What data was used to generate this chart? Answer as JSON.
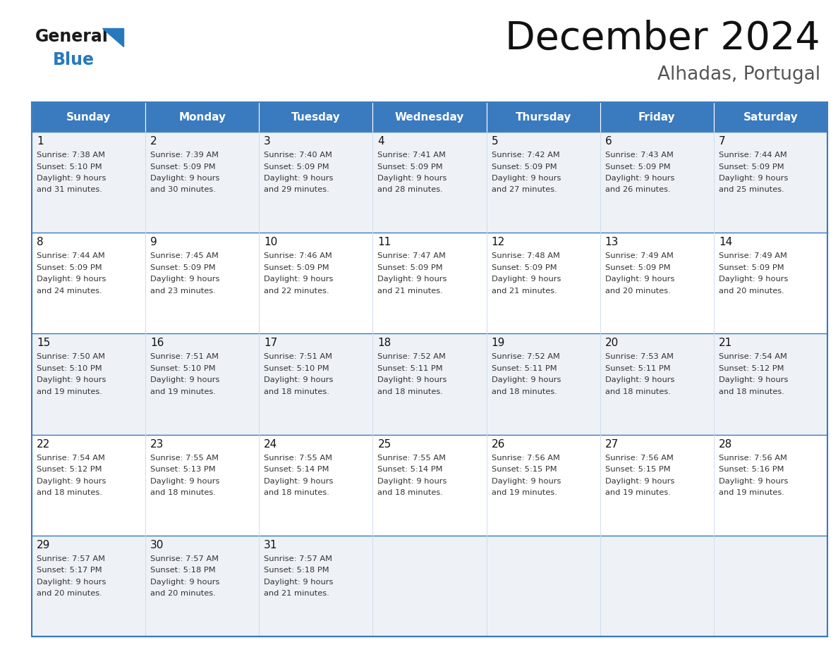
{
  "title": "December 2024",
  "subtitle": "Alhadas, Portugal",
  "days_of_week": [
    "Sunday",
    "Monday",
    "Tuesday",
    "Wednesday",
    "Thursday",
    "Friday",
    "Saturday"
  ],
  "header_bg": "#3a7abf",
  "header_text": "#ffffff",
  "cell_bg_light": "#eef2f7",
  "cell_bg_white": "#ffffff",
  "border_color": "#3a7abf",
  "row_border_color": "#6699cc",
  "day_num_color": "#111111",
  "text_color": "#333333",
  "calendar_data": [
    [
      {
        "day": "1",
        "sunrise": "7:38 AM",
        "sunset": "5:10 PM",
        "daylight_line1": "9 hours",
        "daylight_line2": "and 31 minutes."
      },
      {
        "day": "2",
        "sunrise": "7:39 AM",
        "sunset": "5:09 PM",
        "daylight_line1": "9 hours",
        "daylight_line2": "and 30 minutes."
      },
      {
        "day": "3",
        "sunrise": "7:40 AM",
        "sunset": "5:09 PM",
        "daylight_line1": "9 hours",
        "daylight_line2": "and 29 minutes."
      },
      {
        "day": "4",
        "sunrise": "7:41 AM",
        "sunset": "5:09 PM",
        "daylight_line1": "9 hours",
        "daylight_line2": "and 28 minutes."
      },
      {
        "day": "5",
        "sunrise": "7:42 AM",
        "sunset": "5:09 PM",
        "daylight_line1": "9 hours",
        "daylight_line2": "and 27 minutes."
      },
      {
        "day": "6",
        "sunrise": "7:43 AM",
        "sunset": "5:09 PM",
        "daylight_line1": "9 hours",
        "daylight_line2": "and 26 minutes."
      },
      {
        "day": "7",
        "sunrise": "7:44 AM",
        "sunset": "5:09 PM",
        "daylight_line1": "9 hours",
        "daylight_line2": "and 25 minutes."
      }
    ],
    [
      {
        "day": "8",
        "sunrise": "7:44 AM",
        "sunset": "5:09 PM",
        "daylight_line1": "9 hours",
        "daylight_line2": "and 24 minutes."
      },
      {
        "day": "9",
        "sunrise": "7:45 AM",
        "sunset": "5:09 PM",
        "daylight_line1": "9 hours",
        "daylight_line2": "and 23 minutes."
      },
      {
        "day": "10",
        "sunrise": "7:46 AM",
        "sunset": "5:09 PM",
        "daylight_line1": "9 hours",
        "daylight_line2": "and 22 minutes."
      },
      {
        "day": "11",
        "sunrise": "7:47 AM",
        "sunset": "5:09 PM",
        "daylight_line1": "9 hours",
        "daylight_line2": "and 21 minutes."
      },
      {
        "day": "12",
        "sunrise": "7:48 AM",
        "sunset": "5:09 PM",
        "daylight_line1": "9 hours",
        "daylight_line2": "and 21 minutes."
      },
      {
        "day": "13",
        "sunrise": "7:49 AM",
        "sunset": "5:09 PM",
        "daylight_line1": "9 hours",
        "daylight_line2": "and 20 minutes."
      },
      {
        "day": "14",
        "sunrise": "7:49 AM",
        "sunset": "5:09 PM",
        "daylight_line1": "9 hours",
        "daylight_line2": "and 20 minutes."
      }
    ],
    [
      {
        "day": "15",
        "sunrise": "7:50 AM",
        "sunset": "5:10 PM",
        "daylight_line1": "9 hours",
        "daylight_line2": "and 19 minutes."
      },
      {
        "day": "16",
        "sunrise": "7:51 AM",
        "sunset": "5:10 PM",
        "daylight_line1": "9 hours",
        "daylight_line2": "and 19 minutes."
      },
      {
        "day": "17",
        "sunrise": "7:51 AM",
        "sunset": "5:10 PM",
        "daylight_line1": "9 hours",
        "daylight_line2": "and 18 minutes."
      },
      {
        "day": "18",
        "sunrise": "7:52 AM",
        "sunset": "5:11 PM",
        "daylight_line1": "9 hours",
        "daylight_line2": "and 18 minutes."
      },
      {
        "day": "19",
        "sunrise": "7:52 AM",
        "sunset": "5:11 PM",
        "daylight_line1": "9 hours",
        "daylight_line2": "and 18 minutes."
      },
      {
        "day": "20",
        "sunrise": "7:53 AM",
        "sunset": "5:11 PM",
        "daylight_line1": "9 hours",
        "daylight_line2": "and 18 minutes."
      },
      {
        "day": "21",
        "sunrise": "7:54 AM",
        "sunset": "5:12 PM",
        "daylight_line1": "9 hours",
        "daylight_line2": "and 18 minutes."
      }
    ],
    [
      {
        "day": "22",
        "sunrise": "7:54 AM",
        "sunset": "5:12 PM",
        "daylight_line1": "9 hours",
        "daylight_line2": "and 18 minutes."
      },
      {
        "day": "23",
        "sunrise": "7:55 AM",
        "sunset": "5:13 PM",
        "daylight_line1": "9 hours",
        "daylight_line2": "and 18 minutes."
      },
      {
        "day": "24",
        "sunrise": "7:55 AM",
        "sunset": "5:14 PM",
        "daylight_line1": "9 hours",
        "daylight_line2": "and 18 minutes."
      },
      {
        "day": "25",
        "sunrise": "7:55 AM",
        "sunset": "5:14 PM",
        "daylight_line1": "9 hours",
        "daylight_line2": "and 18 minutes."
      },
      {
        "day": "26",
        "sunrise": "7:56 AM",
        "sunset": "5:15 PM",
        "daylight_line1": "9 hours",
        "daylight_line2": "and 19 minutes."
      },
      {
        "day": "27",
        "sunrise": "7:56 AM",
        "sunset": "5:15 PM",
        "daylight_line1": "9 hours",
        "daylight_line2": "and 19 minutes."
      },
      {
        "day": "28",
        "sunrise": "7:56 AM",
        "sunset": "5:16 PM",
        "daylight_line1": "9 hours",
        "daylight_line2": "and 19 minutes."
      }
    ],
    [
      {
        "day": "29",
        "sunrise": "7:57 AM",
        "sunset": "5:17 PM",
        "daylight_line1": "9 hours",
        "daylight_line2": "and 20 minutes."
      },
      {
        "day": "30",
        "sunrise": "7:57 AM",
        "sunset": "5:18 PM",
        "daylight_line1": "9 hours",
        "daylight_line2": "and 20 minutes."
      },
      {
        "day": "31",
        "sunrise": "7:57 AM",
        "sunset": "5:18 PM",
        "daylight_line1": "9 hours",
        "daylight_line2": "and 21 minutes."
      },
      null,
      null,
      null,
      null
    ]
  ],
  "logo_general_color": "#1a1a1a",
  "logo_blue_color": "#2779bd",
  "fig_bg": "#ffffff",
  "fig_width": 11.88,
  "fig_height": 9.18,
  "dpi": 100
}
